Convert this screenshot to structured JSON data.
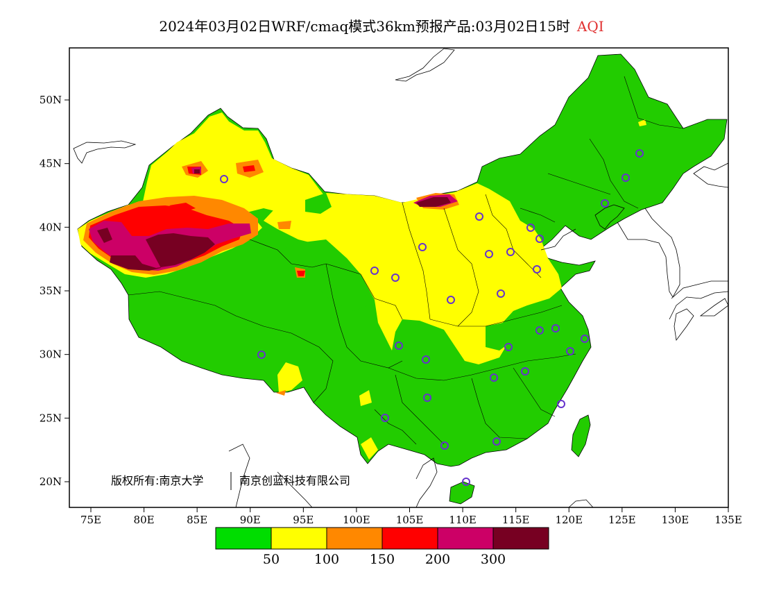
{
  "title": {
    "main": "2024年03月02日WRF/cmaq模式36km预报产品:03月02日15时",
    "variable": "AQI",
    "variable_color": "#e03030"
  },
  "axes": {
    "x_ticks": [
      "75E",
      "80E",
      "85E",
      "90E",
      "95E",
      "100E",
      "105E",
      "110E",
      "115E",
      "120E",
      "125E",
      "130E",
      "135E"
    ],
    "y_ticks": [
      "50N",
      "45N",
      "40N",
      "35N",
      "30N",
      "25N",
      "20N"
    ]
  },
  "colorbar": {
    "colors": [
      "#00dd00",
      "#ffff00",
      "#ff8800",
      "#ff0000",
      "#cc0066",
      "#770022"
    ],
    "labels": [
      "50",
      "100",
      "150",
      "200",
      "300"
    ]
  },
  "copyright": {
    "part1": "版权所有:南京大学",
    "part2": "南京创蓝科技有限公司"
  },
  "map": {
    "land_default_color": "#22cc00",
    "station_marker_color": "#6633cc"
  }
}
